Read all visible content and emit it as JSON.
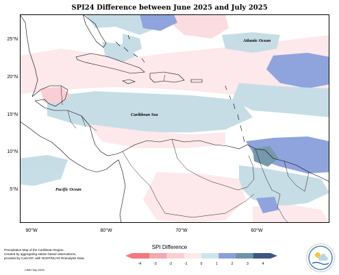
{
  "map": {
    "title": "SPI24 Difference between June 2025 and July 2025",
    "lat_labels": [
      "25°N",
      "20°N",
      "15°N",
      "10°N",
      "5°N"
    ],
    "lon_labels": [
      "90°W",
      "80°W",
      "70°W",
      "60°W"
    ],
    "places": {
      "atlantic": "Atlantic Ocean",
      "caribbean": "Caribbean Sea",
      "pacific": "Pacific Ocean"
    },
    "colors": {
      "ocean": "#ffffff",
      "land": "#ffffff",
      "border": "#000000",
      "very_light_pink": "#fde7ea",
      "light_pink": "#f9ccd2",
      "light_blue": "#c4dce5",
      "medium_blue": "#8a9fdc",
      "teal": "#6f93a6"
    }
  },
  "legend": {
    "title": "SPI Difference",
    "ticks": [
      "-4",
      "-3",
      "-2",
      "-1",
      "0",
      "1",
      "2",
      "3",
      "4"
    ],
    "colors": [
      "#f2797f",
      "#f4a9ae",
      "#f9cfd3",
      "#fde8ea",
      "#d0e3ea",
      "#8a9fdc",
      "#6f93a6",
      "#3f5682"
    ]
  },
  "footer": {
    "note_lines": [
      "Precipitation Map of the Caribbean Region.",
      "Created by aggregating station based observations,",
      "provided by CariCOF, with NCEP/NCAR Reanalysis Data."
    ],
    "credit": "CIMH Sep-2025"
  }
}
